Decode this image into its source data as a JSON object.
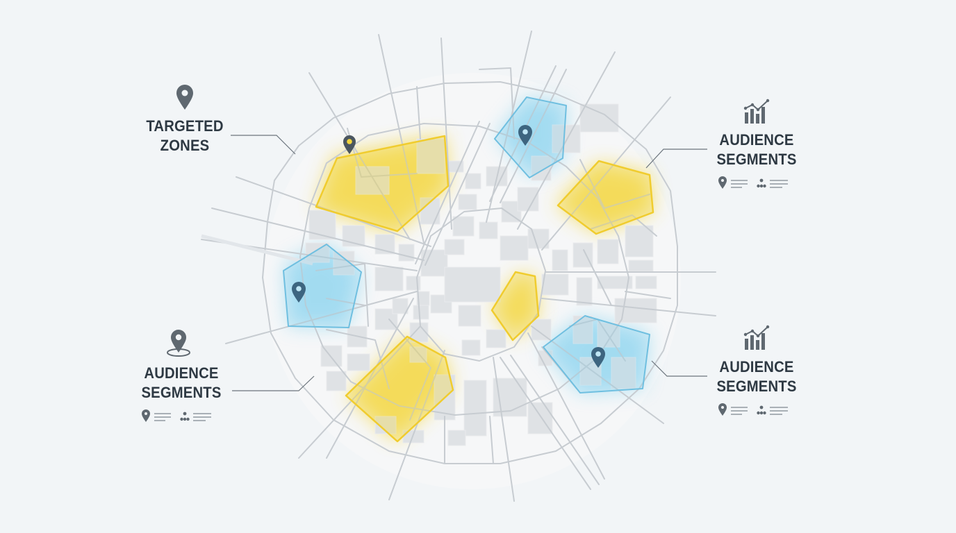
{
  "callouts": {
    "targeted_zones": {
      "line1": "TARGETED",
      "line2": "ZONES",
      "icon": "map-pin-icon"
    },
    "audience_left": {
      "line1": "AUDIENCE",
      "line2": "SEGMENTS",
      "icon": "map-pin-ring-icon",
      "meta_icons": [
        "pin-icon",
        "hierarchy-icon"
      ]
    },
    "audience_top_right": {
      "line1": "AUDIENCE",
      "line2": "SEGMENTS",
      "icon": "bar-chart-trend-icon",
      "meta_icons": [
        "pin-icon",
        "hierarchy-icon"
      ]
    },
    "audience_bottom_right": {
      "line1": "AUDIENCE",
      "line2": "SEGMENTS",
      "icon": "bar-chart-trend-icon",
      "meta_icons": [
        "pin-icon",
        "hierarchy-icon"
      ]
    }
  },
  "colors": {
    "background": "#f2f5f7",
    "road": "#c7ccd1",
    "block": "#dfe2e5",
    "zone_yellow": "#f4d63c",
    "zone_blue": "#7fd0ee",
    "pin": "#3d6580",
    "text": "#2e3943",
    "icon": "#5f6870"
  }
}
